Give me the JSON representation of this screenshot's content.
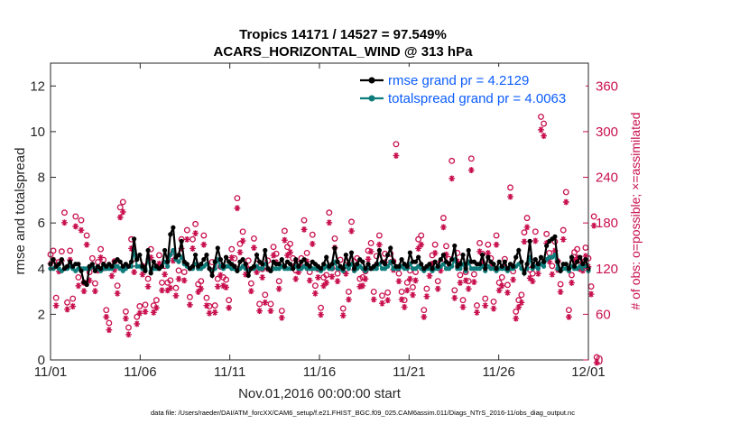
{
  "chart_data": {
    "type": "line",
    "title": "Tropics 14171 / 14527 = 97.549%",
    "subtitle": "ACARS_HORIZONTAL_WIND @ 313 hPa",
    "xlabel": "Nov.01,2016 00:00:00 start",
    "ylabel": "rmse and totalspread",
    "ylabel_right": "# of obs: o=possible; ×=assimilated",
    "x_ticks": [
      "11/01",
      "11/06",
      "11/11",
      "11/16",
      "11/21",
      "11/26",
      "12/01"
    ],
    "xlim": [
      0,
      30
    ],
    "ylim": [
      0,
      13
    ],
    "y_ticks": [
      "0",
      "2",
      "4",
      "6",
      "8",
      "10",
      "12"
    ],
    "ylim_right": [
      0,
      390
    ],
    "y_ticks_right": [
      "0",
      "60",
      "120",
      "180",
      "240",
      "300",
      "360"
    ],
    "colors": {
      "rmse": "#000000",
      "spread": "#0e7c7b",
      "obs": "#c8104d",
      "legend_text": "#0b5cff"
    },
    "series": [
      {
        "name": "rmse grand pr = 4.2129",
        "values": [
          4.2,
          4.4,
          4.1,
          4.2,
          4.4,
          4.0,
          4.1,
          4.3,
          4.1,
          4.2,
          4.2,
          3.9,
          3.4,
          3.3,
          4.1,
          4.2,
          3.9,
          4.1,
          4.0,
          4.2,
          4.1,
          4.2,
          4.1,
          4.3,
          4.4,
          4.3,
          4.1,
          4.2,
          4.1,
          4.3,
          5.3,
          4.4,
          4.6,
          4.1,
          3.9,
          4.8,
          3.8,
          4.3,
          4.1,
          4.0,
          4.1,
          4.8,
          4.3,
          5.5,
          5.8,
          4.5,
          4.6,
          5.2,
          4.3,
          4.2,
          4.0,
          4.1,
          4.6,
          4.1,
          4.2,
          4.4,
          4.6,
          4.0,
          3.7,
          4.3,
          4.9,
          4.4,
          4.1,
          4.5,
          4.3,
          4.2,
          4.1,
          3.9,
          4.3,
          4.4,
          4.2,
          3.7,
          4.0,
          4.1,
          4.6,
          4.3,
          4.2,
          4.8,
          4.0,
          3.9,
          4.3,
          4.2,
          4.2,
          4.4,
          4.1,
          4.3,
          4.2,
          4.0,
          4.4,
          4.1,
          4.3,
          4.4,
          4.2,
          4.1,
          4.3,
          4.2,
          4.1,
          4.0,
          4.2,
          4.5,
          4.1,
          4.2,
          4.9,
          4.3,
          4.1,
          4.0,
          4.6,
          4.2,
          4.7,
          4.0,
          4.2,
          4.4,
          4.3,
          4.0,
          4.2,
          4.0,
          4.1,
          4.2,
          4.8,
          4.3,
          4.2,
          4.6,
          4.9,
          4.3,
          4.1,
          4.1,
          4.4,
          4.2,
          4.1,
          4.7,
          4.3,
          4.3,
          4.5,
          4.2,
          4.0,
          4.1,
          4.2,
          4.0,
          4.3,
          4.1,
          4.4,
          4.6,
          4.3,
          4.2,
          4.4,
          5.0,
          4.1,
          4.2,
          4.6,
          4.0,
          4.8,
          4.3,
          4.3,
          4.2,
          4.2,
          4.6,
          4.0,
          4.5,
          4.3,
          4.2,
          4.0,
          4.3,
          4.1,
          4.3,
          4.0,
          4.2,
          4.1,
          4.5,
          4.8,
          4.3,
          3.8,
          4.2,
          5.2,
          4.1,
          4.4,
          4.2,
          4.5,
          4.3,
          5.0,
          5.2,
          5.3,
          5.4,
          4.3,
          3.9,
          4.2,
          4.2,
          4.0,
          4.5,
          4.1,
          4.3,
          4.5,
          4.2,
          4.4,
          4.0
        ]
      },
      {
        "name": "totalspread grand pr = 4.0063",
        "values": [
          4.0,
          4.0,
          4.1,
          4.0,
          3.9,
          4.0,
          4.0,
          4.1,
          4.0,
          3.9,
          4.0,
          4.0,
          4.0,
          4.0,
          4.0,
          4.1,
          4.0,
          4.0,
          3.9,
          4.0,
          4.0,
          4.0,
          4.0,
          4.1,
          4.1,
          4.0,
          3.9,
          4.0,
          4.1,
          4.1,
          4.8,
          4.1,
          4.1,
          4.0,
          4.0,
          4.4,
          3.9,
          4.0,
          4.0,
          4.0,
          4.1,
          4.3,
          4.1,
          4.6,
          4.8,
          4.4,
          4.3,
          4.5,
          4.2,
          4.1,
          4.0,
          4.0,
          4.2,
          4.0,
          4.0,
          4.1,
          4.2,
          4.0,
          3.9,
          4.0,
          4.4,
          4.1,
          4.0,
          4.1,
          4.1,
          4.0,
          4.0,
          3.9,
          4.0,
          4.1,
          4.0,
          3.9,
          4.0,
          4.0,
          4.1,
          4.0,
          4.0,
          4.2,
          4.0,
          3.9,
          4.0,
          4.0,
          4.0,
          4.1,
          4.0,
          4.0,
          4.0,
          4.0,
          4.1,
          4.0,
          4.0,
          4.1,
          4.0,
          4.0,
          4.0,
          4.0,
          4.0,
          3.9,
          4.0,
          4.1,
          4.0,
          4.0,
          4.3,
          4.0,
          4.0,
          3.9,
          4.1,
          4.0,
          4.2,
          3.9,
          4.0,
          4.1,
          4.0,
          3.9,
          4.0,
          4.0,
          4.0,
          4.0,
          4.2,
          4.0,
          4.0,
          4.1,
          4.3,
          4.0,
          4.0,
          4.0,
          4.1,
          4.0,
          4.0,
          4.2,
          4.0,
          4.0,
          4.1,
          4.0,
          3.9,
          4.0,
          4.0,
          3.9,
          4.0,
          4.0,
          4.1,
          4.2,
          4.0,
          4.0,
          4.1,
          4.4,
          4.0,
          4.0,
          4.2,
          3.9,
          4.3,
          4.0,
          4.0,
          4.0,
          4.0,
          4.1,
          3.9,
          4.1,
          4.0,
          4.0,
          3.9,
          4.0,
          4.0,
          4.0,
          3.9,
          4.0,
          4.0,
          4.1,
          4.2,
          4.0,
          3.8,
          4.0,
          4.5,
          4.0,
          4.1,
          4.0,
          4.2,
          4.1,
          4.4,
          4.5,
          4.5,
          4.6,
          4.0,
          3.9,
          4.0,
          4.0,
          3.9,
          4.1,
          4.0,
          4.0,
          4.1,
          4.0,
          4.1,
          3.9
        ]
      },
      {
        "name": "obs_possible",
        "values": [
          135,
          140,
          78,
          125,
          139,
          190,
          72,
          140,
          77,
          185,
          105,
          180,
          98,
          160,
          112,
          130,
          97,
          125,
          142,
          128,
          62,
          45,
          118,
          126,
          94,
          197,
          204,
          60,
          39,
          155,
          123,
          53,
          67,
          120,
          69,
          103,
          142,
          68,
          75,
          134,
          98,
          120,
          98,
          101,
          138,
          91,
          114,
          155,
          112,
          167,
          79,
          155,
          175,
          96,
          100,
          160,
          78,
          67,
          125,
          68,
          103,
          119,
          105,
          102,
          75,
          142,
          130,
          209,
          149,
          165,
          120,
          127,
          97,
          156,
          123,
          70,
          116,
          82,
          127,
          70,
          145,
          136,
          100,
          61,
          166,
          145,
          149,
          130,
          114,
          123,
          130,
          180,
          137,
          112,
          161,
          94,
          116,
          65,
          105,
          108,
          190,
          117,
          156,
          110,
          128,
          64,
          121,
          86,
          178,
          126,
          130,
          103,
          105,
          113,
          140,
          150,
          86,
          133,
          160,
          81,
          136,
          85,
          136,
          126,
          280,
          110,
          86,
          75,
          98,
          114,
          92,
          112,
          155,
          160,
          62,
          90,
          118,
          134,
          148,
          100,
          125,
          183,
          146,
          129,
          258,
          88,
          137,
          108,
          75,
          112,
          100,
          261,
          109,
          68,
          150,
          136,
          77,
          148,
          130,
          73,
          160,
          98,
          105,
          129,
          95,
          223,
          113,
          60,
          75,
          82,
          164,
          183,
          115,
          110,
          165,
          121,
          316,
          307,
          162,
          137,
          120,
          152,
          126,
          96,
          167,
          217,
          62,
          108,
          138,
          142,
          127,
          125,
          144,
          130,
          93,
          185,
          0
        ]
      },
      {
        "name": "obs_assimilated",
        "values": [
          130,
          135,
          75,
          120,
          134,
          184,
          70,
          135,
          74,
          179,
          101,
          174,
          94,
          155,
          108,
          126,
          94,
          121,
          138,
          124,
          60,
          43,
          114,
          122,
          91,
          191,
          198,
          58,
          37,
          150,
          119,
          51,
          65,
          116,
          67,
          100,
          138,
          66,
          72,
          130,
          95,
          116,
          95,
          98,
          134,
          88,
          110,
          150,
          108,
          162,
          76,
          150,
          170,
          93,
          97,
          155,
          75,
          65,
          121,
          66,
          100,
          115,
          101,
          99,
          72,
          138,
          126,
          203,
          145,
          160,
          116,
          123,
          94,
          151,
          119,
          68,
          112,
          79,
          123,
          68,
          141,
          132,
          97,
          59,
          161,
          141,
          145,
          126,
          110,
          119,
          126,
          175,
          133,
          108,
          156,
          91,
          112,
          63,
          101,
          105,
          184,
          113,
          151,
          107,
          124,
          62,
          117,
          83,
          173,
          122,
          126,
          100,
          101,
          110,
          136,
          146,
          83,
          129,
          155,
          78,
          132,
          82,
          132,
          122,
          272,
          107,
          83,
          73,
          95,
          110,
          89,
          108,
          150,
          155,
          60,
          87,
          114,
          130,
          144,
          97,
          121,
          178,
          142,
          125,
          242,
          85,
          133,
          105,
          73,
          108,
          97,
          253,
          106,
          66,
          146,
          132,
          75,
          144,
          126,
          71,
          155,
          95,
          101,
          125,
          92,
          218,
          109,
          58,
          73,
          79,
          159,
          178,
          111,
          107,
          160,
          117,
          306,
          298,
          157,
          133,
          116,
          147,
          122,
          93,
          162,
          211,
          60,
          105,
          134,
          138,
          123,
          121,
          140,
          126,
          90,
          180,
          0
        ]
      }
    ],
    "legend": [
      "rmse grand pr = 4.2129",
      "totalspread grand pr = 4.0063"
    ],
    "legend_position": "top-right",
    "footer": "data file: /Users/raeder/DAI/ATM_forcXX/CAM6_setup/f.e21.FHIST_BGC.f09_025.CAM6assim.011/Diags_NTrS_2016-11/obs_diag_output.nc"
  }
}
